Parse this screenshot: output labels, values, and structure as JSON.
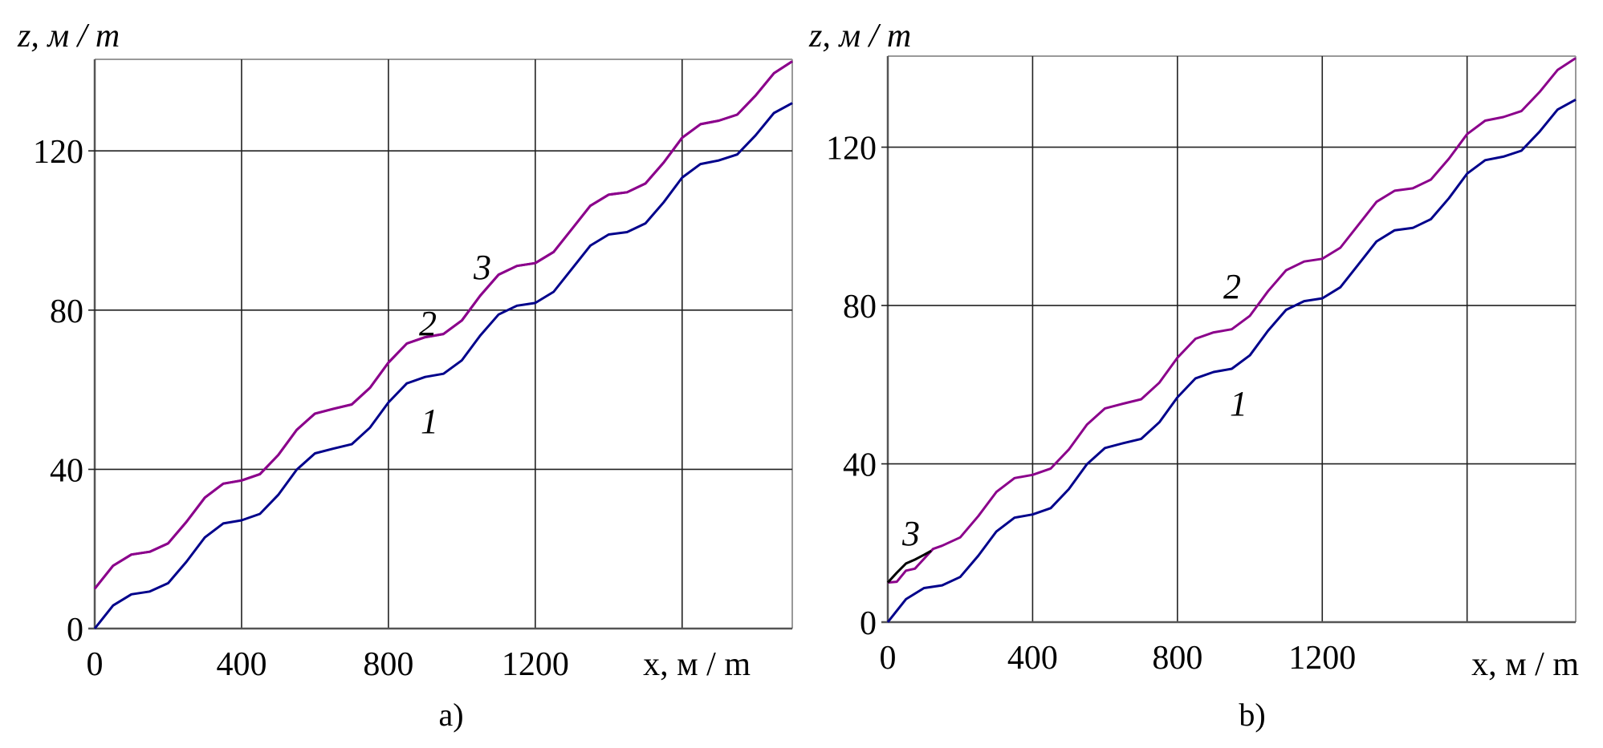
{
  "chart_data": [
    {
      "type": "line",
      "panel_label": "a)",
      "xlabel": "x, м / m",
      "ylabel": "z, м / m",
      "xlim": [
        0,
        1900
      ],
      "ylim": [
        0,
        143
      ],
      "xticks": [
        0,
        400,
        800,
        1200
      ],
      "yticks": [
        0,
        40,
        80,
        120
      ],
      "grid": true,
      "series": [
        {
          "name": "1",
          "color": "#00008b",
          "x": [
            0,
            50,
            100,
            150,
            200,
            250,
            300,
            350,
            400,
            450,
            500,
            550,
            600,
            650,
            700,
            750,
            800,
            850,
            900,
            950,
            1000,
            1050,
            1100,
            1150,
            1200,
            1250,
            1300,
            1350,
            1400,
            1450,
            1500,
            1550,
            1600,
            1650,
            1700,
            1750,
            1800,
            1850,
            1900
          ],
          "y": [
            0,
            5.8,
            8.6,
            9.3,
            11.4,
            16.8,
            22.9,
            26.4,
            27.2,
            28.8,
            33.6,
            39.9,
            44.0,
            45.2,
            46.3,
            50.5,
            56.8,
            61.6,
            63.2,
            64.0,
            67.4,
            73.6,
            78.9,
            81.1,
            81.8,
            84.6,
            90.4,
            96.2,
            99.0,
            99.6,
            101.8,
            107.1,
            113.3,
            116.7,
            117.6,
            119.1,
            123.9,
            129.5,
            132.0
          ]
        },
        {
          "name": "2",
          "color": "#8b008b",
          "x": [
            0,
            50,
            100,
            150,
            200,
            250,
            300,
            350,
            400,
            450,
            500,
            550,
            600,
            650,
            700,
            750,
            800,
            850,
            900,
            950,
            1000,
            1050,
            1100,
            1150,
            1200,
            1250,
            1300,
            1350,
            1400,
            1450,
            1500,
            1550,
            1600,
            1650,
            1700,
            1750,
            1800,
            1850,
            1900
          ],
          "y": [
            10,
            15.8,
            18.6,
            19.3,
            21.4,
            26.8,
            32.9,
            36.4,
            37.2,
            38.8,
            43.6,
            49.9,
            54.0,
            55.2,
            56.3,
            60.5,
            66.8,
            71.6,
            73.2,
            74.0,
            77.4,
            83.6,
            88.9,
            91.1,
            91.8,
            94.6,
            100.4,
            106.2,
            109.0,
            109.6,
            111.8,
            117.1,
            123.3,
            126.7,
            127.6,
            129.1,
            133.9,
            139.5,
            142.5
          ]
        },
        {
          "name": "3",
          "color": "#8b008b",
          "x": [
            0,
            50,
            100,
            150,
            200,
            250,
            300,
            350,
            400,
            450,
            500,
            550,
            600,
            650,
            700,
            750,
            800,
            850,
            900,
            950,
            1000,
            1050,
            1100,
            1150,
            1200,
            1250,
            1300,
            1350,
            1400,
            1450,
            1500,
            1550,
            1600,
            1650,
            1700,
            1750,
            1800,
            1850,
            1900
          ],
          "y": [
            10,
            15.8,
            18.6,
            19.3,
            21.4,
            26.8,
            32.9,
            36.4,
            37.2,
            38.8,
            43.6,
            49.9,
            54.0,
            55.2,
            56.3,
            60.5,
            66.8,
            71.6,
            73.2,
            74.0,
            77.4,
            83.6,
            88.9,
            91.1,
            91.8,
            94.6,
            100.4,
            106.2,
            109.0,
            109.6,
            111.8,
            117.1,
            123.3,
            126.7,
            127.6,
            129.1,
            133.9,
            139.5,
            142.5
          ]
        }
      ],
      "curve_labels": [
        "1",
        "2",
        "3"
      ]
    },
    {
      "type": "line",
      "panel_label": "b)",
      "xlabel": "x, м / m",
      "ylabel": "z, м / m",
      "xlim": [
        0,
        1900
      ],
      "ylim": [
        0,
        143
      ],
      "xticks": [
        0,
        400,
        800,
        1200
      ],
      "yticks": [
        0,
        40,
        80,
        120
      ],
      "grid": true,
      "series": [
        {
          "name": "1",
          "color": "#00008b",
          "x": [
            0,
            50,
            100,
            150,
            200,
            250,
            300,
            350,
            400,
            450,
            500,
            550,
            600,
            650,
            700,
            750,
            800,
            850,
            900,
            950,
            1000,
            1050,
            1100,
            1150,
            1200,
            1250,
            1300,
            1350,
            1400,
            1450,
            1500,
            1550,
            1600,
            1650,
            1700,
            1750,
            1800,
            1850,
            1900
          ],
          "y": [
            0,
            5.8,
            8.6,
            9.3,
            11.4,
            16.8,
            22.9,
            26.4,
            27.2,
            28.8,
            33.6,
            39.9,
            44.0,
            45.2,
            46.3,
            50.5,
            56.8,
            61.6,
            63.2,
            64.0,
            67.4,
            73.6,
            78.9,
            81.1,
            81.8,
            84.6,
            90.4,
            96.2,
            99.0,
            99.6,
            101.8,
            107.1,
            113.3,
            116.7,
            117.6,
            119.1,
            123.9,
            129.5,
            132.0
          ]
        },
        {
          "name": "2",
          "color": "#8b008b",
          "x": [
            0,
            25,
            50,
            75,
            100,
            125,
            150,
            200,
            250,
            300,
            350,
            400,
            450,
            500,
            550,
            600,
            650,
            700,
            750,
            800,
            850,
            900,
            950,
            1000,
            1050,
            1100,
            1150,
            1200,
            1250,
            1300,
            1350,
            1400,
            1450,
            1500,
            1550,
            1600,
            1650,
            1700,
            1750,
            1800,
            1850,
            1900
          ],
          "y": [
            10,
            10.2,
            13,
            13.5,
            16,
            18.5,
            19.3,
            21.4,
            26.8,
            32.9,
            36.4,
            37.2,
            38.8,
            43.6,
            49.9,
            54.0,
            55.2,
            56.3,
            60.5,
            66.8,
            71.6,
            73.2,
            74.0,
            77.4,
            83.6,
            88.9,
            91.1,
            91.8,
            94.6,
            100.4,
            106.2,
            109.0,
            109.6,
            111.8,
            117.1,
            123.3,
            126.7,
            127.6,
            129.1,
            133.9,
            139.5,
            142.5
          ]
        },
        {
          "name": "3",
          "color": "#000000",
          "x": [
            0,
            25,
            50,
            75,
            100,
            120
          ],
          "y": [
            10,
            12.5,
            14.8,
            15.8,
            17,
            18
          ]
        }
      ],
      "curve_labels": [
        "1",
        "2",
        "3"
      ]
    }
  ]
}
